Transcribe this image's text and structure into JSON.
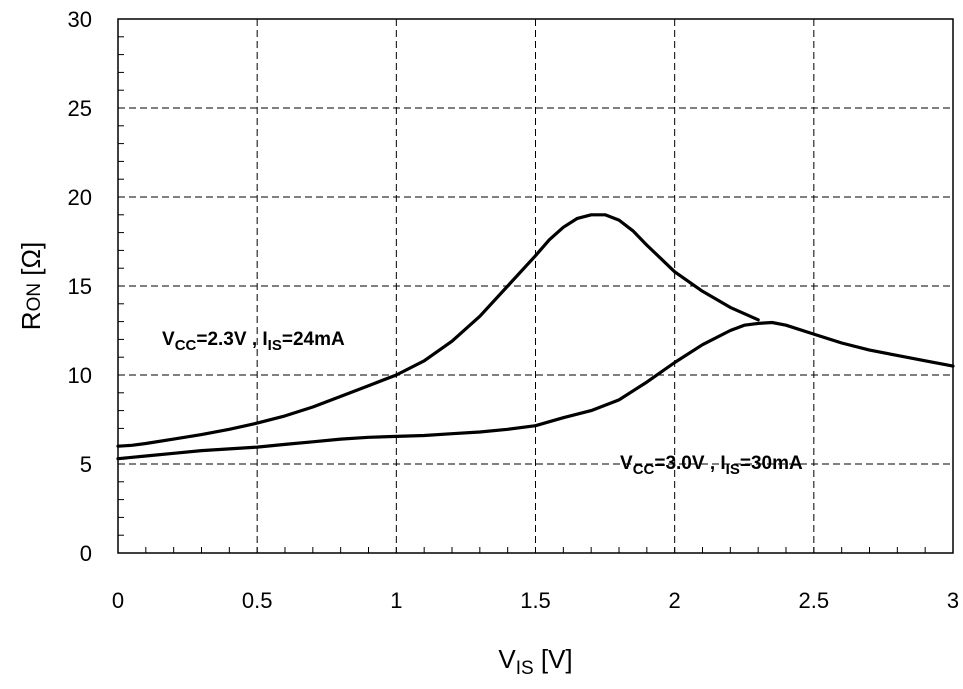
{
  "chart_data": {
    "type": "line",
    "title": "",
    "xlabel": {
      "main": "V",
      "sub": "IS",
      "unit": " [V]"
    },
    "ylabel": {
      "main": "R",
      "sub": "ON",
      "unit": " [Ω]"
    },
    "xlim": [
      0,
      3
    ],
    "ylim": [
      0,
      30
    ],
    "x_ticks": [
      "0",
      "0.5",
      "1",
      "1.5",
      "2",
      "2.5",
      "3"
    ],
    "y_ticks": [
      "0",
      "5",
      "10",
      "15",
      "20",
      "25",
      "30"
    ],
    "grid": true,
    "series": [
      {
        "label_parts": [
          "V",
          "CC",
          "=2.3V , I",
          "IS",
          "=24mA"
        ],
        "x": [
          0,
          0.05,
          0.1,
          0.2,
          0.3,
          0.4,
          0.5,
          0.6,
          0.7,
          0.8,
          0.9,
          1.0,
          1.1,
          1.2,
          1.3,
          1.4,
          1.5,
          1.55,
          1.6,
          1.65,
          1.7,
          1.75,
          1.8,
          1.85,
          1.9,
          2.0,
          2.1,
          2.2,
          2.3
        ],
        "y": [
          6.0,
          6.05,
          6.15,
          6.4,
          6.65,
          6.95,
          7.3,
          7.7,
          8.2,
          8.8,
          9.4,
          10.0,
          10.8,
          11.9,
          13.3,
          15.0,
          16.7,
          17.6,
          18.3,
          18.8,
          19.0,
          19.0,
          18.7,
          18.1,
          17.3,
          15.8,
          14.7,
          13.8,
          13.1
        ]
      },
      {
        "label_parts": [
          "V",
          "CC",
          "=3.0V , I",
          "IS",
          "=30mA"
        ],
        "x": [
          0,
          0.1,
          0.2,
          0.3,
          0.4,
          0.5,
          0.6,
          0.7,
          0.8,
          0.9,
          1.0,
          1.1,
          1.2,
          1.3,
          1.4,
          1.5,
          1.6,
          1.7,
          1.8,
          1.9,
          2.0,
          2.1,
          2.2,
          2.25,
          2.3,
          2.35,
          2.4,
          2.5,
          2.6,
          2.7,
          2.8,
          2.9,
          3.0
        ],
        "y": [
          5.3,
          5.45,
          5.6,
          5.75,
          5.85,
          5.95,
          6.1,
          6.25,
          6.4,
          6.5,
          6.55,
          6.6,
          6.7,
          6.8,
          6.95,
          7.15,
          7.6,
          8.0,
          8.6,
          9.6,
          10.7,
          11.7,
          12.5,
          12.8,
          12.9,
          12.95,
          12.8,
          12.3,
          11.8,
          11.4,
          11.1,
          10.8,
          10.5
        ]
      }
    ]
  }
}
